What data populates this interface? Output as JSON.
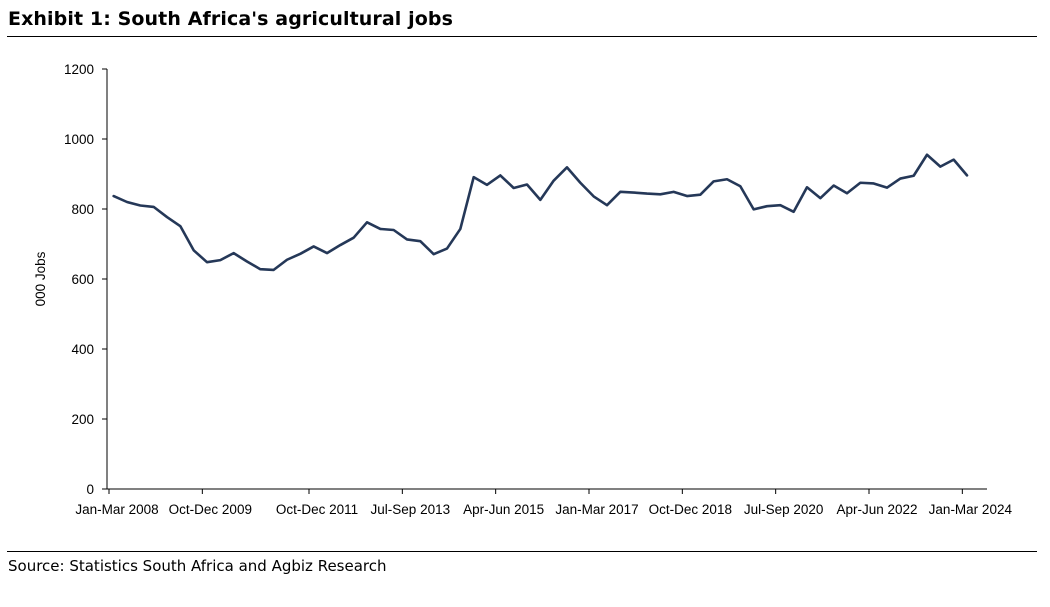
{
  "header": {
    "title": "Exhibit 1: South Africa's agricultural jobs"
  },
  "footer": {
    "source": "Source: Statistics South Africa and Agbiz Research"
  },
  "chart_data": {
    "type": "line",
    "title": "",
    "xlabel": "",
    "ylabel": "000 Jobs",
    "ylim": [
      0,
      1200
    ],
    "yticks": [
      0,
      200,
      400,
      600,
      800,
      1000,
      1200
    ],
    "grid": false,
    "legend": "none",
    "line_color": "#253858",
    "x_tick_labels": [
      "Jan-Mar 2008",
      "Oct-Dec 2009",
      "Oct-Dec 2011",
      "Jul-Sep 2013",
      "Apr-Jun 2015",
      "Jan-Mar 2017",
      "Oct-Dec 2018",
      "Jul-Sep 2020",
      "Apr-Jun 2022",
      "Jan-Mar 2024"
    ],
    "x_tick_quarters": [
      "2008Q1",
      "2009Q4",
      "2011Q4",
      "2013Q3",
      "2015Q2",
      "2017Q1",
      "2018Q4",
      "2020Q3",
      "2022Q2",
      "2024Q1"
    ],
    "x_start": "2008Q1",
    "x_end": "2024Q2",
    "series": [
      {
        "values": [
          837,
          820,
          810,
          806,
          777,
          751,
          682,
          648,
          654,
          674,
          650,
          628,
          626,
          655,
          672,
          693,
          674,
          697,
          718,
          762,
          743,
          740,
          713,
          708,
          671,
          687,
          743,
          891,
          869,
          896,
          860,
          870,
          826,
          881,
          919,
          875,
          836,
          811,
          849,
          847,
          844,
          842,
          849,
          837,
          841,
          879,
          885,
          865,
          799,
          808,
          811,
          792,
          862,
          831,
          867,
          845,
          875,
          873,
          861,
          887,
          895,
          955,
          921,
          941,
          896
        ]
      }
    ]
  }
}
